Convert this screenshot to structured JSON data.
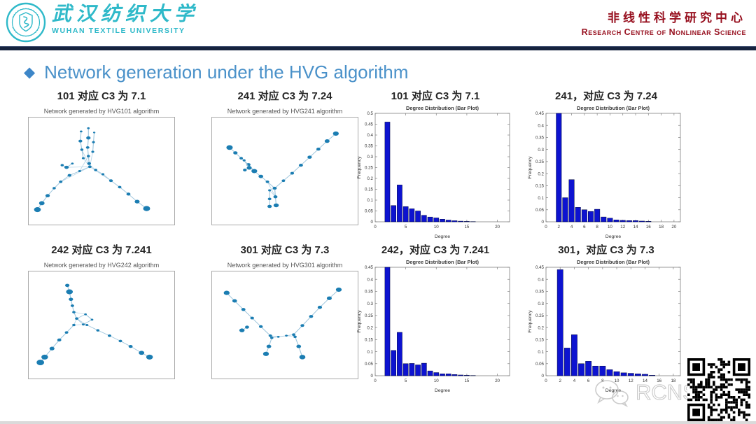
{
  "header": {
    "university_cn": "武汉纺织大学",
    "university_en": "WUHAN TEXTILE UNIVERSITY",
    "centre_cn": "非线性科学研究中心",
    "centre_en": "Research Centre of Nonlinear Science"
  },
  "title": {
    "diamond": "◆",
    "text": "Network generation under the HVG algorithm"
  },
  "colors": {
    "brand_cyan": "#2fb9c9",
    "brand_red": "#97101f",
    "header_bar_navy": "#16233e",
    "title_blue": "#4a91c9",
    "bar_blue": "#0d13d0",
    "bar_edge": "#00093e",
    "node_teal": "#1b7db2",
    "edge_light_blue": "#b9d6e8"
  },
  "networks": [
    {
      "caption": "101 对应 C3 为 7.1",
      "plot_title": "Network generated by HVG101 algorithm",
      "strokes": [
        [
          [
            36,
            13,
            0.9
          ],
          [
            35.5,
            22,
            1.3
          ],
          [
            36.5,
            30,
            1.1
          ],
          [
            37.5,
            38,
            1.0
          ]
        ],
        [
          [
            41,
            10,
            0.9
          ],
          [
            41,
            19,
            1.5
          ],
          [
            40.5,
            28,
            1.2
          ],
          [
            41,
            36,
            1.1
          ],
          [
            41.5,
            43,
            1.3
          ]
        ],
        [
          [
            45,
            14,
            0.8
          ],
          [
            44.5,
            23,
            1.0
          ],
          [
            44,
            32,
            1.0
          ]
        ],
        [
          [
            42,
            46,
            1.2
          ],
          [
            35,
            50,
            1.0
          ],
          [
            28,
            54,
            1.3
          ],
          [
            22,
            60,
            1.2
          ],
          [
            17.5,
            66,
            1.1
          ],
          [
            13,
            73,
            1.5
          ],
          [
            9,
            80,
            1.9
          ],
          [
            6,
            86,
            2.3
          ]
        ],
        [
          [
            46,
            49,
            1.1
          ],
          [
            51,
            53,
            1.0
          ],
          [
            56.5,
            59,
            1.3
          ],
          [
            62.5,
            65,
            1.2
          ],
          [
            68.5,
            71.5,
            1.4
          ],
          [
            74.5,
            78.5,
            1.7
          ],
          [
            81,
            85,
            2.4
          ]
        ],
        [
          [
            30,
            43,
            0.9
          ],
          [
            26,
            46.5,
            1.5
          ],
          [
            23,
            44.5,
            1.1
          ]
        ]
      ],
      "fan": [
        [
          42,
          46,
          36.5,
          30
        ],
        [
          42,
          46,
          41,
          36
        ],
        [
          42,
          46,
          44,
          32
        ],
        [
          42,
          46,
          28,
          54
        ],
        [
          42,
          46,
          22,
          60
        ],
        [
          42,
          46,
          46,
          49
        ],
        [
          42,
          46,
          56.5,
          59
        ],
        [
          41,
          43,
          46,
          49
        ],
        [
          37.5,
          38,
          42,
          46
        ],
        [
          42,
          46,
          26,
          46.5
        ],
        [
          41,
          36,
          35,
          50
        ]
      ]
    },
    {
      "caption": "241 对应 C3 为 7.24",
      "plot_title": "Network generated by HVG241 algorithm",
      "strokes": [
        [
          [
            12,
            28,
            2.2
          ],
          [
            16,
            33,
            1.5
          ],
          [
            20,
            38,
            1.2
          ],
          [
            25,
            44,
            1.4
          ],
          [
            29,
            50,
            2.0
          ],
          [
            33.5,
            55,
            1.6
          ],
          [
            38,
            60,
            1.2
          ],
          [
            43,
            66,
            1.4
          ]
        ],
        [
          [
            43,
            66,
            1.3
          ],
          [
            49,
            59,
            1.2
          ],
          [
            55,
            52,
            1.3
          ],
          [
            61,
            44.5,
            1.4
          ],
          [
            67,
            37,
            1.5
          ],
          [
            73,
            29.5,
            1.4
          ],
          [
            79,
            22,
            1.7
          ],
          [
            85,
            15,
            2.0
          ]
        ],
        [
          [
            43,
            66,
            1.1
          ],
          [
            43.5,
            74,
            1.4
          ],
          [
            44,
            82,
            1.8
          ]
        ],
        [
          [
            39.5,
            68,
            1.0
          ],
          [
            39.5,
            76,
            1.2
          ],
          [
            39.5,
            83,
            1.5
          ]
        ],
        [
          [
            22,
            40,
            1.0
          ],
          [
            25.5,
            47,
            1.7
          ],
          [
            22.5,
            49,
            1.3
          ]
        ]
      ],
      "fan": [
        [
          43,
          66,
          39.5,
          68
        ],
        [
          43,
          66,
          43.5,
          74
        ],
        [
          39.5,
          68,
          43.5,
          74
        ],
        [
          43,
          66,
          49,
          59
        ],
        [
          38,
          60,
          43.5,
          74
        ],
        [
          29,
          50,
          25.5,
          47
        ]
      ]
    },
    {
      "caption": "242 对应 C3 为 7.241",
      "plot_title": "Network generated by HVG242 algorithm",
      "strokes": [
        [
          [
            26.5,
            13,
            1.5
          ],
          [
            28,
            19,
            2.3
          ],
          [
            29,
            26,
            1.5
          ],
          [
            30,
            32,
            1.2
          ],
          [
            31,
            38,
            1.1
          ],
          [
            33,
            44,
            1.2
          ]
        ],
        [
          [
            33,
            44,
            1.0
          ],
          [
            39,
            40,
            0.9
          ],
          [
            43.5,
            45,
            0.9
          ],
          [
            37.5,
            49.5,
            1.0
          ],
          [
            33,
            44,
            0.8
          ]
        ],
        [
          [
            31,
            50,
            1.1
          ],
          [
            26,
            57,
            1.2
          ],
          [
            21,
            64,
            1.4
          ],
          [
            16,
            72,
            1.7
          ],
          [
            11,
            80,
            2.3
          ],
          [
            8,
            85,
            2.6
          ]
        ],
        [
          [
            40,
            50,
            1.0
          ],
          [
            47.5,
            55,
            1.1
          ],
          [
            55.5,
            60,
            1.2
          ],
          [
            63,
            65,
            1.2
          ],
          [
            70,
            70,
            1.4
          ],
          [
            77.5,
            76,
            1.9
          ],
          [
            83,
            80,
            2.3
          ]
        ]
      ],
      "fan": [
        [
          33,
          44,
          31,
          50
        ],
        [
          33,
          44,
          40,
          50
        ],
        [
          37.5,
          49.5,
          31,
          50
        ],
        [
          37.5,
          49.5,
          40,
          50
        ],
        [
          31,
          38,
          39,
          40
        ]
      ]
    },
    {
      "caption": "301 对应 C3 为 7.3",
      "plot_title": "Network generated by HVG301 algorithm",
      "strokes": [
        [
          [
            10,
            20,
            2.0
          ],
          [
            15.5,
            27.5,
            1.6
          ],
          [
            21.5,
            35.5,
            1.4
          ],
          [
            27.5,
            43.5,
            1.3
          ],
          [
            33.5,
            51.5,
            1.3
          ],
          [
            40,
            60,
            1.2
          ]
        ],
        [
          [
            56,
            59,
            1.2
          ],
          [
            62,
            50.5,
            1.3
          ],
          [
            68,
            42,
            1.4
          ],
          [
            74,
            33.5,
            1.5
          ],
          [
            80.5,
            25,
            1.7
          ],
          [
            87,
            17,
            2.0
          ]
        ],
        [
          [
            40,
            60,
            1.0
          ],
          [
            45.5,
            61,
            0.9
          ],
          [
            51,
            60,
            0.9
          ],
          [
            56,
            59,
            1.0
          ]
        ],
        [
          [
            41,
            62,
            1.1
          ],
          [
            39,
            70,
            1.6
          ],
          [
            37,
            77,
            2.0
          ]
        ],
        [
          [
            57,
            61,
            1.1
          ],
          [
            59.5,
            70,
            1.6
          ],
          [
            62,
            80,
            2.1
          ]
        ],
        [
          [
            24,
            52,
            1.4
          ],
          [
            20.5,
            55,
            1.8
          ]
        ]
      ],
      "fan": [
        [
          40,
          60,
          41,
          62
        ],
        [
          56,
          59,
          57,
          61
        ],
        [
          45.5,
          61,
          41,
          62
        ],
        [
          51,
          60,
          57,
          61
        ],
        [
          56,
          59,
          62,
          50.5
        ],
        [
          40,
          60,
          33.5,
          51.5
        ],
        [
          41,
          62,
          45.5,
          61
        ]
      ]
    }
  ],
  "chart_data": [
    {
      "caption": "101 对应 C3 为 7.1",
      "type": "bar",
      "title": "Degree Distribution (Bar Plot)",
      "xlabel": "Degree",
      "ylabel": "Frequency",
      "xlim": [
        0,
        22
      ],
      "ylim": [
        0,
        0.5
      ],
      "ytick_step": 0.05,
      "xticks": [
        0,
        5,
        10,
        15,
        20
      ],
      "degrees": [
        2,
        3,
        4,
        5,
        6,
        7,
        8,
        9,
        10,
        11,
        12,
        13,
        14,
        15,
        16
      ],
      "values": [
        0.46,
        0.075,
        0.17,
        0.07,
        0.06,
        0.05,
        0.03,
        0.022,
        0.018,
        0.012,
        0.008,
        0.005,
        0.003,
        0.002,
        0.001
      ]
    },
    {
      "caption": "241，对应 C3 为 7.24",
      "type": "bar",
      "title": "Degree Distribution (Bar Plot)",
      "xlabel": "Degree",
      "ylabel": "Frequency",
      "xlim": [
        0,
        21
      ],
      "ylim": [
        0,
        0.45
      ],
      "ytick_step": 0.05,
      "xticks": [
        0,
        2,
        4,
        6,
        8,
        10,
        12,
        14,
        16,
        18,
        20
      ],
      "degrees": [
        2,
        3,
        4,
        5,
        6,
        7,
        8,
        9,
        10,
        11,
        12,
        13,
        14,
        15,
        16
      ],
      "values": [
        0.45,
        0.1,
        0.175,
        0.06,
        0.05,
        0.043,
        0.052,
        0.02,
        0.015,
        0.008,
        0.006,
        0.005,
        0.005,
        0.003,
        0.002
      ]
    },
    {
      "caption": "242，对应 C3 为 7.241",
      "type": "bar",
      "title": "Degree Distribution (Bar Plot)",
      "xlabel": "Degree",
      "ylabel": "Frequency",
      "xlim": [
        0,
        22
      ],
      "ylim": [
        0,
        0.45
      ],
      "ytick_step": 0.05,
      "xticks": [
        0,
        5,
        10,
        15,
        20
      ],
      "degrees": [
        2,
        3,
        4,
        5,
        6,
        7,
        8,
        9,
        10,
        11,
        12,
        13,
        14,
        15,
        16
      ],
      "values": [
        0.45,
        0.105,
        0.18,
        0.05,
        0.051,
        0.045,
        0.052,
        0.02,
        0.013,
        0.008,
        0.008,
        0.005,
        0.003,
        0.002,
        0.001
      ]
    },
    {
      "caption": "301，对应 C3 为 7.3",
      "type": "bar",
      "title": "Degree Distribution (Bar Plot)",
      "xlabel": "Degree",
      "ylabel": "Frequency",
      "xlim": [
        0,
        19
      ],
      "ylim": [
        0,
        0.45
      ],
      "ytick_step": 0.05,
      "xticks": [
        0,
        2,
        4,
        6,
        8,
        10,
        12,
        14,
        16,
        18
      ],
      "degrees": [
        2,
        3,
        4,
        5,
        6,
        7,
        8,
        9,
        10,
        11,
        12,
        13,
        14,
        15
      ],
      "values": [
        0.44,
        0.115,
        0.17,
        0.05,
        0.06,
        0.04,
        0.04,
        0.025,
        0.017,
        0.012,
        0.01,
        0.008,
        0.006,
        0.002
      ]
    }
  ],
  "watermark": {
    "text": "RCNS Lab"
  }
}
